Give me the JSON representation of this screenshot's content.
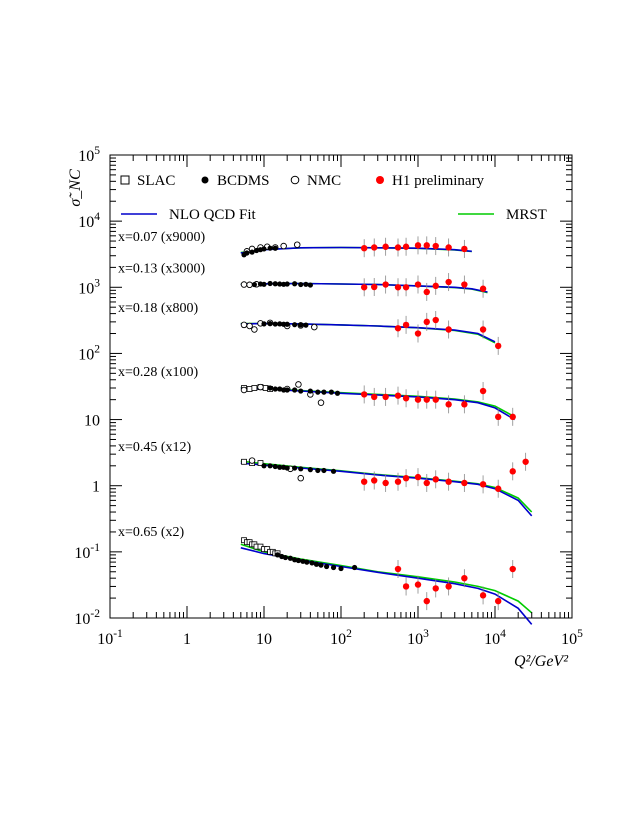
{
  "chart_data": {
    "type": "scatter",
    "xlabel": "Q²/GeV²",
    "ylabel": "σ̃_NC",
    "xscale": "log",
    "yscale": "log",
    "xlim": [
      0.1,
      100000
    ],
    "ylim": [
      0.01,
      100000
    ],
    "x_tick_labels": [
      "10-1",
      "1",
      "10",
      "102",
      "103",
      "104",
      "105"
    ],
    "y_tick_labels": [
      "10-2",
      "10-1",
      "1",
      "10",
      "102",
      "103",
      "104",
      "105"
    ],
    "legend_placement": "top, inside plot",
    "legend": [
      {
        "name": "SLAC",
        "marker": "open-square"
      },
      {
        "name": "BCDMS",
        "marker": "filled-circle"
      },
      {
        "name": "NMC",
        "marker": "open-circle"
      },
      {
        "name": "H1 preliminary",
        "marker": "filled-circle",
        "color": "#ff0000"
      },
      {
        "name": "NLO QCD Fit",
        "marker": "line",
        "color": "#0000cc"
      },
      {
        "name": "MRST",
        "marker": "line",
        "color": "#00cc00"
      }
    ],
    "bins": [
      {
        "label": "x=0.07 (x9000)",
        "qcd_curve": [
          [
            5,
            3300
          ],
          [
            10,
            3700
          ],
          [
            30,
            3950
          ],
          [
            100,
            4000
          ],
          [
            300,
            3950
          ],
          [
            1000,
            3900
          ],
          [
            3000,
            3700
          ],
          [
            5000,
            3500
          ]
        ],
        "mrst_curve": [
          [
            5,
            3350
          ],
          [
            10,
            3720
          ],
          [
            30,
            3960
          ],
          [
            100,
            4000
          ],
          [
            300,
            3950
          ],
          [
            1000,
            3880
          ],
          [
            3000,
            3680
          ],
          [
            5000,
            3480
          ]
        ],
        "bcdms": [
          [
            5.5,
            3100
          ],
          [
            6,
            3300
          ],
          [
            7,
            3400
          ],
          [
            8,
            3600
          ],
          [
            9,
            3700
          ],
          [
            10,
            3800
          ],
          [
            12,
            3900
          ],
          [
            14,
            3900
          ]
        ],
        "nmc": [
          [
            6,
            3500
          ],
          [
            7,
            3800
          ],
          [
            9,
            4000
          ],
          [
            11,
            4100
          ],
          [
            14,
            4000
          ],
          [
            18,
            4200
          ],
          [
            27,
            4400
          ]
        ],
        "h1": [
          [
            200,
            3900
          ],
          [
            270,
            4000
          ],
          [
            380,
            4100
          ],
          [
            550,
            4000
          ],
          [
            700,
            4100
          ],
          [
            1000,
            4300
          ],
          [
            1300,
            4300
          ],
          [
            1700,
            4200
          ],
          [
            2500,
            4000
          ],
          [
            4000,
            3800
          ]
        ]
      },
      {
        "label": "x=0.13 (x3000)",
        "qcd_curve": [
          [
            5,
            1100
          ],
          [
            10,
            1130
          ],
          [
            30,
            1140
          ],
          [
            100,
            1120
          ],
          [
            300,
            1100
          ],
          [
            1000,
            1050
          ],
          [
            3000,
            1000
          ],
          [
            5000,
            950
          ],
          [
            8000,
            850
          ]
        ],
        "mrst_curve": [
          [
            5,
            1110
          ],
          [
            10,
            1130
          ],
          [
            30,
            1140
          ],
          [
            100,
            1120
          ],
          [
            300,
            1100
          ],
          [
            1000,
            1050
          ],
          [
            3000,
            990
          ],
          [
            5000,
            940
          ],
          [
            8000,
            830
          ]
        ],
        "bcdms": [
          [
            7.5,
            1100
          ],
          [
            9,
            1120
          ],
          [
            10,
            1110
          ],
          [
            12,
            1140
          ],
          [
            14,
            1130
          ],
          [
            16,
            1120
          ],
          [
            18,
            1110
          ],
          [
            20,
            1120
          ],
          [
            25,
            1130
          ],
          [
            30,
            1100
          ],
          [
            35,
            1110
          ],
          [
            40,
            1080
          ]
        ],
        "nmc": [
          [
            5.5,
            1100
          ],
          [
            6.5,
            1090
          ],
          [
            8,
            1110
          ]
        ],
        "h1": [
          [
            200,
            1000
          ],
          [
            270,
            1010
          ],
          [
            380,
            1100
          ],
          [
            550,
            1000
          ],
          [
            700,
            1000
          ],
          [
            1000,
            1100
          ],
          [
            1300,
            850
          ],
          [
            1700,
            1050
          ],
          [
            2500,
            1200
          ],
          [
            4000,
            1100
          ],
          [
            7000,
            950
          ]
        ]
      },
      {
        "label": "x=0.18 (x800)",
        "qcd_curve": [
          [
            5,
            280
          ],
          [
            10,
            282
          ],
          [
            30,
            280
          ],
          [
            100,
            270
          ],
          [
            300,
            260
          ],
          [
            1000,
            245
          ],
          [
            3000,
            225
          ],
          [
            6000,
            200
          ],
          [
            10000,
            150
          ]
        ],
        "mrst_curve": [
          [
            5,
            282
          ],
          [
            10,
            283
          ],
          [
            30,
            280
          ],
          [
            100,
            270
          ],
          [
            300,
            260
          ],
          [
            1000,
            244
          ],
          [
            3000,
            222
          ],
          [
            6000,
            195
          ],
          [
            10000,
            145
          ]
        ],
        "bcdms": [
          [
            10,
            280
          ],
          [
            12,
            282
          ],
          [
            14,
            278
          ],
          [
            16,
            280
          ],
          [
            18,
            276
          ],
          [
            20,
            276
          ],
          [
            25,
            272
          ],
          [
            30,
            270
          ],
          [
            35,
            268
          ]
        ],
        "nmc": [
          [
            5.5,
            270
          ],
          [
            6.5,
            260
          ],
          [
            7.5,
            230
          ],
          [
            9,
            285
          ],
          [
            12,
            290
          ],
          [
            20,
            260
          ],
          [
            30,
            265
          ],
          [
            45,
            250
          ]
        ],
        "h1": [
          [
            550,
            240
          ],
          [
            700,
            270
          ],
          [
            1000,
            200
          ],
          [
            1300,
            300
          ],
          [
            1700,
            320
          ],
          [
            2500,
            230
          ],
          [
            7000,
            230
          ],
          [
            11000,
            130
          ]
        ]
      },
      {
        "label": "x=0.28 (x100)",
        "qcd_curve": [
          [
            5,
            30
          ],
          [
            10,
            29
          ],
          [
            30,
            27
          ],
          [
            100,
            25
          ],
          [
            300,
            23.5
          ],
          [
            1000,
            22
          ],
          [
            3000,
            20
          ],
          [
            6000,
            18
          ],
          [
            10000,
            15
          ],
          [
            18000,
            10
          ]
        ],
        "mrst_curve": [
          [
            5,
            30.5
          ],
          [
            10,
            29.5
          ],
          [
            30,
            27.5
          ],
          [
            100,
            25.5
          ],
          [
            300,
            24
          ],
          [
            1000,
            22.5
          ],
          [
            3000,
            20.5
          ],
          [
            6000,
            18.5
          ],
          [
            10000,
            16
          ],
          [
            18000,
            11
          ]
        ],
        "slac": [
          [
            5.5,
            30
          ],
          [
            6.5,
            29
          ],
          [
            7.5,
            30
          ],
          [
            9,
            31
          ],
          [
            10.5,
            30
          ],
          [
            12,
            29
          ]
        ],
        "bcdms": [
          [
            12,
            30
          ],
          [
            14,
            29
          ],
          [
            16,
            29
          ],
          [
            18,
            28
          ],
          [
            20,
            28
          ],
          [
            25,
            28
          ],
          [
            30,
            27
          ],
          [
            40,
            27
          ],
          [
            50,
            26
          ],
          [
            60,
            26
          ],
          [
            75,
            26
          ],
          [
            90,
            25
          ]
        ],
        "nmc": [
          [
            5.5,
            28
          ],
          [
            9,
            31
          ],
          [
            20,
            29
          ],
          [
            28,
            34
          ],
          [
            40,
            24
          ],
          [
            55,
            18
          ]
        ],
        "h1": [
          [
            200,
            24
          ],
          [
            270,
            22
          ],
          [
            380,
            22
          ],
          [
            550,
            23
          ],
          [
            700,
            21
          ],
          [
            1000,
            20
          ],
          [
            1300,
            20
          ],
          [
            1700,
            20
          ],
          [
            2500,
            17
          ],
          [
            4000,
            17
          ],
          [
            7000,
            27
          ],
          [
            11000,
            11
          ],
          [
            17000,
            11
          ]
        ]
      },
      {
        "label": "x=0.45 (x12)",
        "qcd_curve": [
          [
            5,
            2.2
          ],
          [
            10,
            2.05
          ],
          [
            30,
            1.85
          ],
          [
            100,
            1.65
          ],
          [
            300,
            1.45
          ],
          [
            1000,
            1.3
          ],
          [
            3000,
            1.15
          ],
          [
            6000,
            1.05
          ],
          [
            10000,
            0.9
          ],
          [
            20000,
            0.6
          ],
          [
            30000,
            0.35
          ]
        ],
        "mrst_curve": [
          [
            5,
            2.35
          ],
          [
            10,
            2.15
          ],
          [
            30,
            1.9
          ],
          [
            100,
            1.68
          ],
          [
            300,
            1.48
          ],
          [
            1000,
            1.32
          ],
          [
            3000,
            1.17
          ],
          [
            6000,
            1.07
          ],
          [
            10000,
            0.94
          ],
          [
            20000,
            0.65
          ],
          [
            30000,
            0.4
          ]
        ],
        "slac": [
          [
            5.5,
            2.3
          ],
          [
            7,
            2.2
          ],
          [
            9,
            2.2
          ]
        ],
        "bcdms": [
          [
            10,
            2.0
          ],
          [
            12,
            2.0
          ],
          [
            14,
            1.95
          ],
          [
            16,
            1.9
          ],
          [
            18,
            1.9
          ],
          [
            20,
            1.85
          ],
          [
            25,
            1.85
          ],
          [
            30,
            1.8
          ],
          [
            40,
            1.75
          ],
          [
            50,
            1.7
          ],
          [
            60,
            1.7
          ],
          [
            80,
            1.65
          ]
        ],
        "nmc": [
          [
            7,
            2.4
          ],
          [
            22,
            1.8
          ],
          [
            30,
            1.3
          ]
        ],
        "h1": [
          [
            200,
            1.15
          ],
          [
            270,
            1.2
          ],
          [
            380,
            1.1
          ],
          [
            550,
            1.15
          ],
          [
            700,
            1.3
          ],
          [
            1000,
            1.35
          ],
          [
            1300,
            1.1
          ],
          [
            1700,
            1.25
          ],
          [
            2500,
            1.15
          ],
          [
            4000,
            1.1
          ],
          [
            7000,
            1.05
          ],
          [
            11000,
            0.9
          ],
          [
            17000,
            1.65
          ],
          [
            25000,
            2.3
          ]
        ]
      },
      {
        "label": "x=0.65 (x2)",
        "qcd_curve": [
          [
            5,
            0.115
          ],
          [
            10,
            0.094
          ],
          [
            30,
            0.075
          ],
          [
            100,
            0.06
          ],
          [
            300,
            0.049
          ],
          [
            1000,
            0.04
          ],
          [
            3000,
            0.033
          ],
          [
            6000,
            0.028
          ],
          [
            10000,
            0.023
          ],
          [
            20000,
            0.014
          ],
          [
            30000,
            0.008
          ]
        ],
        "mrst_curve": [
          [
            5,
            0.13
          ],
          [
            10,
            0.1
          ],
          [
            30,
            0.078
          ],
          [
            100,
            0.062
          ],
          [
            300,
            0.05
          ],
          [
            1000,
            0.042
          ],
          [
            3000,
            0.035
          ],
          [
            6000,
            0.03
          ],
          [
            10000,
            0.026
          ],
          [
            20000,
            0.018
          ],
          [
            30000,
            0.012
          ]
        ],
        "slac": [
          [
            5.5,
            0.15
          ],
          [
            6,
            0.14
          ],
          [
            6.5,
            0.14
          ],
          [
            7,
            0.13
          ],
          [
            7.5,
            0.13
          ],
          [
            8,
            0.12
          ],
          [
            9,
            0.12
          ],
          [
            10,
            0.11
          ],
          [
            11,
            0.11
          ],
          [
            12,
            0.1
          ],
          [
            13,
            0.1
          ],
          [
            14,
            0.095
          ],
          [
            15,
            0.095
          ]
        ],
        "bcdms": [
          [
            15,
            0.09
          ],
          [
            17,
            0.085
          ],
          [
            19,
            0.082
          ],
          [
            22,
            0.08
          ],
          [
            25,
            0.076
          ],
          [
            28,
            0.074
          ],
          [
            32,
            0.072
          ],
          [
            36,
            0.07
          ],
          [
            42,
            0.068
          ],
          [
            48,
            0.065
          ],
          [
            55,
            0.063
          ],
          [
            65,
            0.06
          ],
          [
            80,
            0.058
          ],
          [
            100,
            0.056
          ],
          [
            150,
            0.058
          ]
        ],
        "h1": [
          [
            550,
            0.055
          ],
          [
            700,
            0.03
          ],
          [
            1000,
            0.032
          ],
          [
            1300,
            0.018
          ],
          [
            1700,
            0.028
          ],
          [
            2500,
            0.03
          ],
          [
            4000,
            0.04
          ],
          [
            7000,
            0.022
          ],
          [
            11000,
            0.018
          ],
          [
            17000,
            0.055
          ]
        ]
      }
    ]
  }
}
